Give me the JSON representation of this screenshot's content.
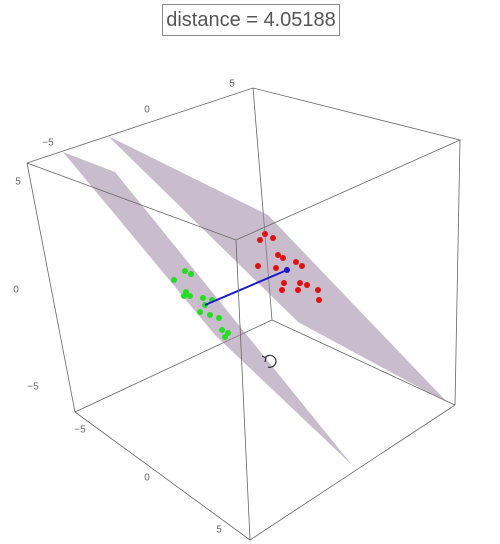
{
  "label": "distance = 4.05188",
  "axes": {
    "top": [
      "−5",
      "0",
      "5"
    ],
    "left": [
      "5",
      "0",
      "−5"
    ],
    "bottom": [
      "−5",
      "0",
      "5"
    ]
  }
}
